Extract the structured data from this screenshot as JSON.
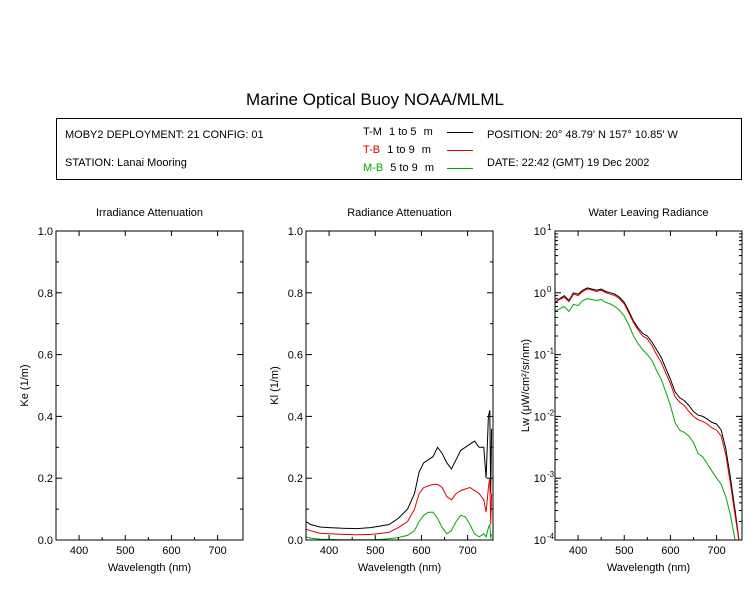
{
  "header": {
    "title": "Marine Optical Buoy NOAA/MLML",
    "deployment": "MOBY2 DEPLOYMENT: 21 CONFIG: 01",
    "station": "STATION: Lanai Mooring",
    "position": "POSITION: 20° 48.79' N   157° 10.85' W",
    "date": "DATE: 22:42 (GMT) 19 Dec 2002"
  },
  "legend": [
    {
      "code": "T-M",
      "range": "1 to 5",
      "unit": "m",
      "color": "#000000"
    },
    {
      "code": "T-B",
      "range": "1 to 9",
      "unit": "m",
      "color": "#dd0000"
    },
    {
      "code": "M-B",
      "range": "5 to 9",
      "unit": "m",
      "color": "#00aa00"
    }
  ],
  "chart_data": [
    {
      "type": "line",
      "title": "Irradiance Attenuation",
      "xlabel": "Wavelength (nm)",
      "ylabel": "Ke  (1/m)",
      "xlim": [
        350,
        755
      ],
      "ylim": [
        0,
        1
      ],
      "xticks": [
        "400",
        "500",
        "600",
        "700"
      ],
      "yticks": [
        "0.0",
        "0.2",
        "0.4",
        "0.6",
        "0.8",
        "1.0"
      ],
      "series": []
    },
    {
      "type": "line",
      "title": "Radiance Attenuation",
      "xlabel": "Wavelength (nm)",
      "ylabel": "Kl  (1/m)",
      "xlim": [
        350,
        755
      ],
      "ylim": [
        0,
        1
      ],
      "xticks": [
        "400",
        "500",
        "600",
        "700"
      ],
      "yticks": [
        "0.0",
        "0.2",
        "0.4",
        "0.6",
        "0.8",
        "1.0"
      ],
      "series": [
        {
          "name": "T-M",
          "color": "#000000",
          "x": [
            350,
            360,
            380,
            400,
            430,
            460,
            490,
            510,
            530,
            550,
            570,
            585,
            595,
            605,
            615,
            625,
            635,
            645,
            655,
            665,
            675,
            685,
            695,
            705,
            715,
            725,
            735,
            740,
            745,
            748,
            750,
            752
          ],
          "y": [
            0.06,
            0.05,
            0.042,
            0.04,
            0.038,
            0.037,
            0.04,
            0.045,
            0.05,
            0.07,
            0.1,
            0.15,
            0.22,
            0.25,
            0.26,
            0.27,
            0.3,
            0.28,
            0.25,
            0.23,
            0.26,
            0.29,
            0.3,
            0.31,
            0.32,
            0.3,
            0.3,
            0.2,
            0.4,
            0.42,
            0.15,
            0.36
          ]
        },
        {
          "name": "T-B",
          "color": "#dd0000",
          "x": [
            350,
            360,
            380,
            400,
            430,
            460,
            490,
            510,
            530,
            550,
            570,
            585,
            595,
            605,
            615,
            625,
            635,
            645,
            655,
            665,
            675,
            685,
            695,
            705,
            715,
            725,
            735,
            740,
            745,
            748,
            750,
            752
          ],
          "y": [
            0.035,
            0.03,
            0.022,
            0.02,
            0.018,
            0.017,
            0.018,
            0.021,
            0.025,
            0.04,
            0.06,
            0.1,
            0.15,
            0.17,
            0.175,
            0.18,
            0.18,
            0.17,
            0.14,
            0.13,
            0.15,
            0.16,
            0.165,
            0.17,
            0.16,
            0.15,
            0.13,
            0.09,
            0.17,
            0.2,
            0.05,
            0.15
          ]
        },
        {
          "name": "M-B",
          "color": "#00aa00",
          "x": [
            350,
            360,
            380,
            400,
            430,
            460,
            490,
            510,
            530,
            550,
            570,
            585,
            595,
            605,
            615,
            625,
            635,
            645,
            655,
            665,
            675,
            685,
            695,
            705,
            715,
            725,
            735,
            740,
            745,
            748,
            750,
            752
          ],
          "y": [
            0.01,
            0.006,
            0.003,
            0.002,
            0.001,
            0.001,
            0.001,
            0.002,
            0.004,
            0.008,
            0.015,
            0.03,
            0.06,
            0.08,
            0.09,
            0.09,
            0.07,
            0.04,
            0.02,
            0.03,
            0.06,
            0.08,
            0.075,
            0.05,
            0.02,
            0.01,
            0.02,
            0.01,
            0.04,
            0.05,
            0.005,
            0.02
          ]
        }
      ]
    },
    {
      "type": "line",
      "title": "Water Leaving Radiance",
      "xlabel": "Wavelength (nm)",
      "ylabel": "Lw  (μW/cm²/sr/nm)",
      "yscale": "log",
      "xlim": [
        350,
        755
      ],
      "ylim": [
        0.0001,
        10
      ],
      "xticks": [
        "400",
        "500",
        "600",
        "700"
      ],
      "yticks": [
        {
          "base": "10",
          "exp": "1"
        },
        {
          "base": "10",
          "exp": "0"
        },
        {
          "base": "10",
          "exp": "-1"
        },
        {
          "base": "10",
          "exp": "-2"
        },
        {
          "base": "10",
          "exp": "-3"
        },
        {
          "base": "10",
          "exp": "-4"
        }
      ],
      "series": [
        {
          "name": "T-M",
          "color": "#000000",
          "x": [
            350,
            360,
            370,
            380,
            390,
            400,
            410,
            420,
            430,
            440,
            450,
            460,
            470,
            480,
            490,
            500,
            510,
            520,
            530,
            540,
            550,
            560,
            570,
            580,
            590,
            600,
            610,
            620,
            630,
            640,
            650,
            660,
            670,
            680,
            690,
            700,
            710,
            720,
            730,
            740,
            750
          ],
          "y": [
            0.7,
            0.8,
            0.9,
            0.75,
            1.0,
            0.95,
            1.1,
            1.2,
            1.15,
            1.1,
            1.15,
            1.05,
            1.0,
            0.95,
            0.85,
            0.7,
            0.5,
            0.35,
            0.27,
            0.22,
            0.2,
            0.16,
            0.12,
            0.09,
            0.06,
            0.04,
            0.025,
            0.02,
            0.018,
            0.015,
            0.012,
            0.0105,
            0.01,
            0.009,
            0.008,
            0.0075,
            0.006,
            0.003,
            0.001,
            0.0003,
            8e-05
          ]
        },
        {
          "name": "T-B",
          "color": "#dd0000",
          "x": [
            350,
            360,
            370,
            380,
            390,
            400,
            410,
            420,
            430,
            440,
            450,
            460,
            470,
            480,
            490,
            500,
            510,
            520,
            530,
            540,
            550,
            560,
            570,
            580,
            590,
            600,
            610,
            620,
            630,
            640,
            650,
            660,
            670,
            680,
            690,
            700,
            710,
            720,
            730,
            740,
            750
          ],
          "y": [
            0.7,
            0.78,
            0.85,
            0.72,
            0.95,
            0.9,
            1.05,
            1.15,
            1.1,
            1.05,
            1.1,
            1.0,
            0.95,
            0.9,
            0.8,
            0.66,
            0.47,
            0.33,
            0.25,
            0.2,
            0.18,
            0.14,
            0.1,
            0.075,
            0.05,
            0.034,
            0.021,
            0.017,
            0.015,
            0.012,
            0.01,
            0.0088,
            0.0083,
            0.0075,
            0.0065,
            0.006,
            0.0048,
            0.0024,
            0.0008,
            0.00025,
            8e-05
          ]
        },
        {
          "name": "M-B",
          "color": "#00aa00",
          "x": [
            350,
            360,
            370,
            380,
            390,
            400,
            410,
            420,
            430,
            440,
            450,
            460,
            470,
            480,
            490,
            500,
            510,
            520,
            530,
            540,
            550,
            560,
            570,
            580,
            590,
            600,
            610,
            620,
            630,
            640,
            650,
            660,
            670,
            680,
            690,
            700,
            710,
            720,
            730,
            740,
            750
          ],
          "y": [
            0.5,
            0.55,
            0.6,
            0.5,
            0.65,
            0.62,
            0.75,
            0.8,
            0.78,
            0.75,
            0.78,
            0.7,
            0.66,
            0.6,
            0.52,
            0.42,
            0.3,
            0.2,
            0.15,
            0.12,
            0.1,
            0.08,
            0.055,
            0.04,
            0.025,
            0.015,
            0.008,
            0.006,
            0.0055,
            0.0048,
            0.0038,
            0.0025,
            0.0022,
            0.0017,
            0.0013,
            0.001,
            0.0008,
            0.0005,
            0.00025,
            0.0001,
            5e-05
          ]
        }
      ]
    }
  ]
}
